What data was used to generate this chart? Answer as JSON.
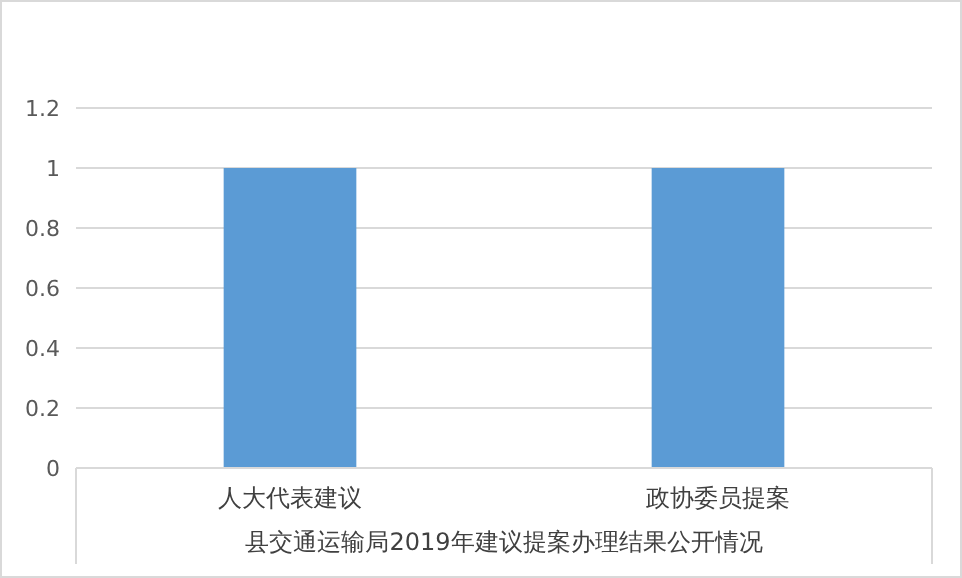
{
  "chart_data": {
    "type": "bar",
    "categories": [
      "人大代表建议",
      "政协委员提案"
    ],
    "values": [
      1,
      1
    ],
    "color": "#5b9bd5",
    "xlabel": "县交通运输局2019年建议提案办理结果公开情况",
    "ylim": [
      0,
      1.2
    ],
    "yticks": [
      0,
      0.2,
      0.4,
      0.6,
      0.8,
      1,
      1.2
    ],
    "grid": "y"
  }
}
